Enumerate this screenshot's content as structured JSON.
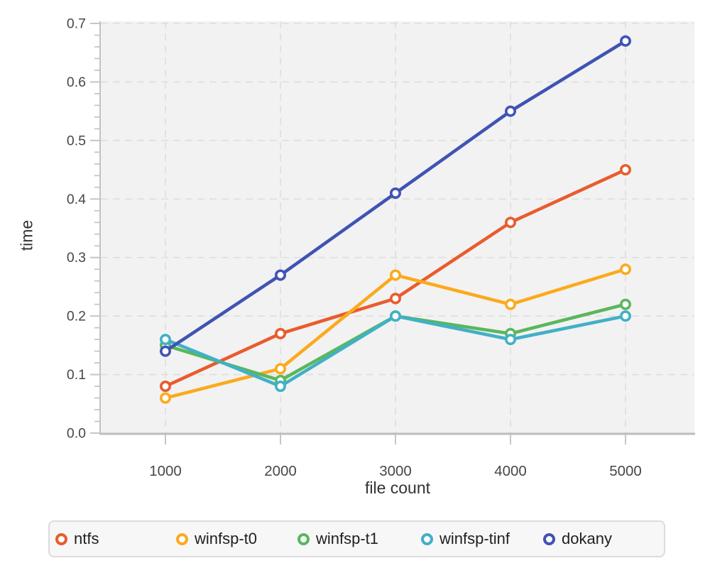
{
  "chart_data": {
    "type": "line",
    "title": "",
    "xlabel": "file count",
    "ylabel": "time",
    "x": [
      1000,
      2000,
      3000,
      4000,
      5000
    ],
    "x_tick_labels": [
      "1000",
      "2000",
      "3000",
      "4000",
      "5000"
    ],
    "ylim": [
      0.0,
      0.7
    ],
    "y_tick_step": 0.1,
    "y_minor_tick_step": 0.02,
    "y_tick_labels": [
      "0.0",
      "0.1",
      "0.2",
      "0.3",
      "0.4",
      "0.5",
      "0.6",
      "0.7"
    ],
    "grid": "dashed",
    "marker": "open-circle",
    "legend_position": "bottom",
    "series": [
      {
        "name": "ntfs",
        "color": "#e95c2d",
        "values": [
          0.08,
          0.17,
          0.23,
          0.36,
          0.45
        ]
      },
      {
        "name": "winfsp-t0",
        "color": "#fbaa1d",
        "values": [
          0.06,
          0.11,
          0.27,
          0.22,
          0.28
        ]
      },
      {
        "name": "winfsp-t1",
        "color": "#5ab75c",
        "values": [
          0.15,
          0.09,
          0.2,
          0.17,
          0.22
        ]
      },
      {
        "name": "winfsp-tinf",
        "color": "#41b0c6",
        "values": [
          0.16,
          0.08,
          0.2,
          0.16,
          0.2
        ]
      },
      {
        "name": "dokany",
        "color": "#4053b4",
        "values": [
          0.14,
          0.27,
          0.41,
          0.55,
          0.67
        ]
      }
    ],
    "style_colors": {
      "plot_background": "#f2f2f2",
      "gridline": "#dedede",
      "axis_line": "#c2c2c2",
      "tick": "#c6c6c6",
      "tick_label": "#474747",
      "legend_background": "#f7f7f7",
      "legend_border": "#dcdcdc"
    }
  }
}
